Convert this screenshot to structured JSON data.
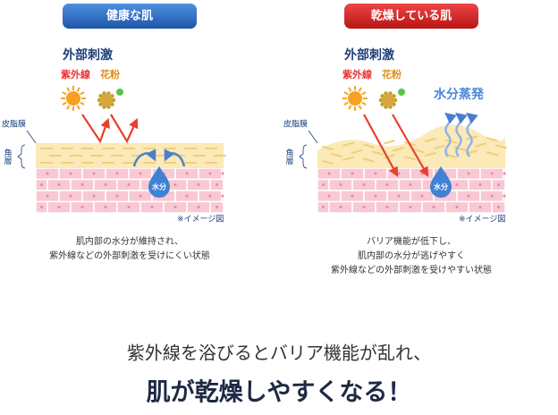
{
  "panels": [
    {
      "badge": "健康な肌",
      "stimulus": "外部刺激",
      "uv": "紫外線",
      "pollen": "花粉",
      "sebum": "皮脂膜",
      "stratum": "角層",
      "water": "水分",
      "note": "※イメージ図",
      "caption": [
        "肌内部の水分が維持され、",
        "紫外線などの外部刺激を受けにくい状態"
      ]
    },
    {
      "badge": "乾燥している肌",
      "stimulus": "外部刺激",
      "uv": "紫外線",
      "pollen": "花粉",
      "evaporation": "水分蒸発",
      "sebum": "皮脂膜",
      "stratum": "角層",
      "water": "水分",
      "note": "※イメージ図",
      "caption": [
        "バリア機能が低下し、",
        "肌内部の水分が逃げやすく",
        "紫外線などの外部刺激を受けやすい状態"
      ]
    }
  ],
  "footer": {
    "line1": "紫外線を浴びるとバリア機能が乱れ、",
    "line2": "肌が乾燥しやすくなる！"
  }
}
